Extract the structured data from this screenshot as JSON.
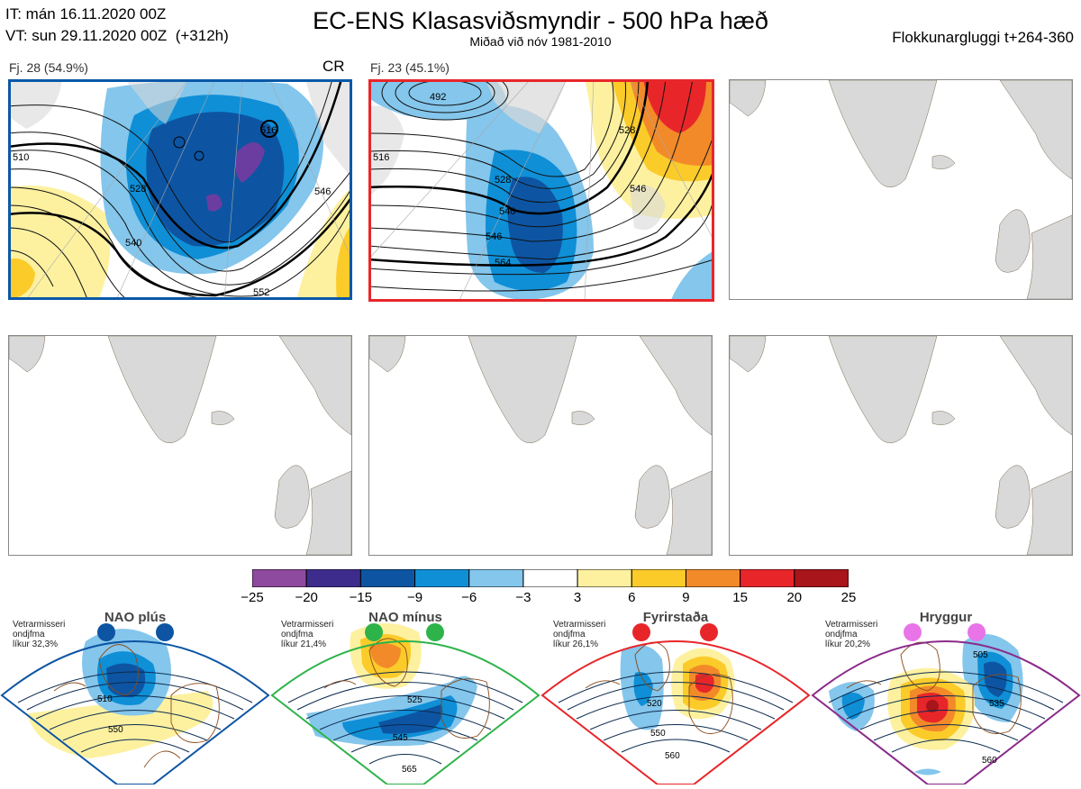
{
  "header": {
    "it": "IT: mán 16.11.2020 00Z",
    "vt": "VT: sun 29.11.2020 00Z  (+312h)",
    "title": "EC-ENS Klasasviðsmyndir - 500 hPa hæð",
    "subtitle": "Miðað við nóv 1981-2010",
    "window": "Flokkunargluggi t+264-360"
  },
  "clusters": [
    {
      "label": "Fj. 28 (54.9%)",
      "tag": "CR",
      "members": 28,
      "percent": 54.9,
      "border": "#0a58a8",
      "contours": [
        "516",
        "528",
        "540",
        "546",
        "552",
        "510"
      ]
    },
    {
      "label": "Fj. 23 (45.1%)",
      "tag": "",
      "members": 23,
      "percent": 45.1,
      "border": "#e8262a",
      "contours": [
        "492",
        "516",
        "528",
        "528",
        "540",
        "546",
        "546",
        "564"
      ]
    },
    {
      "label": "",
      "tag": "",
      "border": "#888888"
    },
    {
      "label": "",
      "tag": "",
      "border": "#888888"
    },
    {
      "label": "",
      "tag": "",
      "border": "#888888"
    },
    {
      "label": "",
      "tag": "",
      "border": "#888888"
    }
  ],
  "colorbar": {
    "ticks": [
      "−25",
      "−20",
      "−15",
      "−9",
      "−6",
      "−3",
      "3",
      "6",
      "9",
      "15",
      "20",
      "25"
    ],
    "colors": [
      "#8e4a9e",
      "#3e2c8c",
      "#0d55a3",
      "#0f8fd6",
      "#84c6ec",
      "#ffffff",
      "#fdf1a0",
      "#fbcb2a",
      "#f28a2a",
      "#e8262a",
      "#a8151a"
    ]
  },
  "regimes": [
    {
      "name": "NAO plús",
      "line1": "Vetrarmisseri",
      "line2": "ondjfma",
      "line3": "líkur 32,3%",
      "probability": 32.3,
      "dot": "#0d55a3",
      "border": "#0d55a3",
      "labels": [
        "510",
        "550"
      ]
    },
    {
      "name": "NAO mínus",
      "line1": "Vetrarmisseri",
      "line2": "ondjfma",
      "line3": "líkur 21,4%",
      "probability": 21.4,
      "dot": "#2db34a",
      "border": "#2db34a",
      "labels": [
        "525",
        "545",
        "565"
      ]
    },
    {
      "name": "Fyrirstaða",
      "line1": "Vetrarmisseri",
      "line2": "ondjfma",
      "line3": "líkur 26,1%",
      "probability": 26.1,
      "dot": "#e8262a",
      "border": "#e8262a",
      "labels": [
        "520",
        "550",
        "560"
      ]
    },
    {
      "name": "Hryggur",
      "line1": "Vetrarmisseri",
      "line2": "ondjfma",
      "line3": "líkur 20,2%",
      "probability": 20.2,
      "dot": "#e874e8",
      "border": "#8a2a8a",
      "labels": [
        "505",
        "535",
        "560"
      ]
    }
  ]
}
